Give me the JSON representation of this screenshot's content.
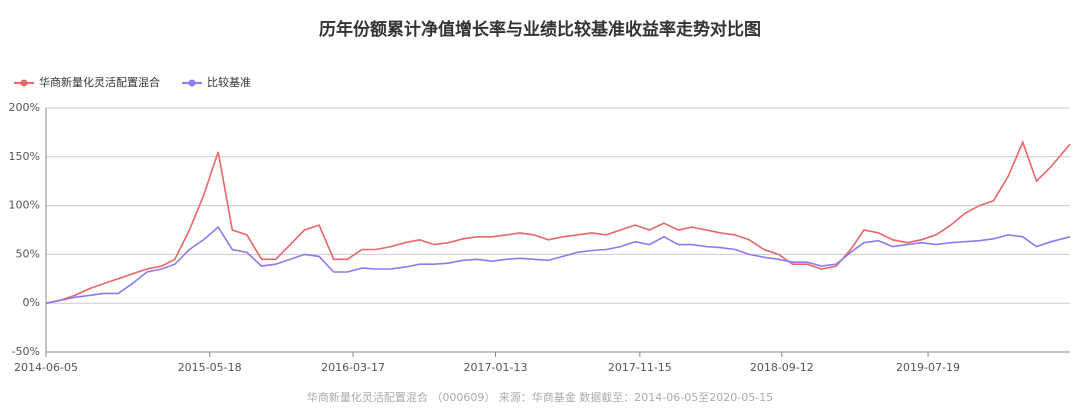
{
  "chart_data": {
    "type": "line",
    "title": "历年份额累计净值增长率与业绩比较基准收益率走势对比图",
    "source": "华商新量化灵活配置混合 （000609） 来源：华商基金 数据截至：2014-06-05至2020-05-15",
    "x": [
      "2014-06-05",
      "2014-07-05",
      "2014-08-05",
      "2014-09-05",
      "2014-10-05",
      "2014-11-05",
      "2014-12-05",
      "2015-01-05",
      "2015-02-05",
      "2015-03-05",
      "2015-04-05",
      "2015-05-05",
      "2015-06-05",
      "2015-07-05",
      "2015-08-05",
      "2015-09-05",
      "2015-10-05",
      "2015-11-05",
      "2015-12-05",
      "2016-01-05",
      "2016-02-05",
      "2016-03-05",
      "2016-04-05",
      "2016-05-05",
      "2016-06-05",
      "2016-07-05",
      "2016-08-05",
      "2016-09-05",
      "2016-10-05",
      "2016-11-05",
      "2016-12-05",
      "2017-01-05",
      "2017-02-05",
      "2017-03-05",
      "2017-04-05",
      "2017-05-05",
      "2017-06-05",
      "2017-07-05",
      "2017-08-05",
      "2017-09-05",
      "2017-10-05",
      "2017-11-05",
      "2017-12-05",
      "2018-01-05",
      "2018-02-05",
      "2018-03-05",
      "2018-04-05",
      "2018-05-05",
      "2018-06-05",
      "2018-07-05",
      "2018-08-05",
      "2018-09-05",
      "2018-10-05",
      "2018-11-05",
      "2018-12-05",
      "2019-01-05",
      "2019-02-05",
      "2019-03-05",
      "2019-04-05",
      "2019-05-05",
      "2019-06-05",
      "2019-07-05",
      "2019-08-05",
      "2019-09-05",
      "2019-10-05",
      "2019-11-05",
      "2019-12-05",
      "2020-01-05",
      "2020-02-05",
      "2020-03-05",
      "2020-04-05",
      "2020-05-15"
    ],
    "series": [
      {
        "name": "华商新量化灵活配置混合",
        "color": "#e8666a",
        "values": [
          0,
          3,
          8,
          15,
          20,
          25,
          30,
          35,
          38,
          45,
          75,
          110,
          155,
          75,
          70,
          45,
          45,
          60,
          75,
          80,
          45,
          45,
          55,
          55,
          58,
          62,
          65,
          60,
          62,
          66,
          68,
          68,
          70,
          72,
          70,
          65,
          68,
          70,
          72,
          70,
          75,
          80,
          75,
          82,
          75,
          78,
          75,
          72,
          70,
          65,
          55,
          50,
          40,
          40,
          35,
          38,
          55,
          75,
          72,
          65,
          62,
          65,
          70,
          80,
          92,
          100,
          105,
          130,
          165,
          125,
          140,
          163
        ]
      },
      {
        "name": "比较基准",
        "color": "#8c7bf0",
        "values": [
          0,
          3,
          6,
          8,
          10,
          10,
          20,
          32,
          35,
          40,
          55,
          65,
          78,
          55,
          52,
          38,
          40,
          45,
          50,
          48,
          32,
          32,
          36,
          35,
          35,
          37,
          40,
          40,
          41,
          44,
          45,
          43,
          45,
          46,
          45,
          44,
          48,
          52,
          54,
          55,
          58,
          63,
          60,
          68,
          60,
          60,
          58,
          57,
          55,
          50,
          47,
          45,
          42,
          42,
          38,
          40,
          52,
          62,
          64,
          58,
          60,
          62,
          60,
          62,
          63,
          64,
          66,
          70,
          68,
          58,
          63,
          68
        ]
      }
    ],
    "xlim": [
      "2014-06-05",
      "2020-05-15"
    ],
    "xticks": [
      "2014-06-05",
      "2015-05-18",
      "2016-03-17",
      "2017-01-13",
      "2017-11-15",
      "2018-09-12",
      "2019-07-19"
    ],
    "ylim": [
      -50,
      200
    ],
    "yticks": [
      {
        "value": -50,
        "label": "-50%"
      },
      {
        "value": 0,
        "label": "0%"
      },
      {
        "value": 50,
        "label": "50%"
      },
      {
        "value": 100,
        "label": "100%"
      },
      {
        "value": 150,
        "label": "150%"
      },
      {
        "value": 200,
        "label": "200%"
      }
    ],
    "grid": true
  }
}
